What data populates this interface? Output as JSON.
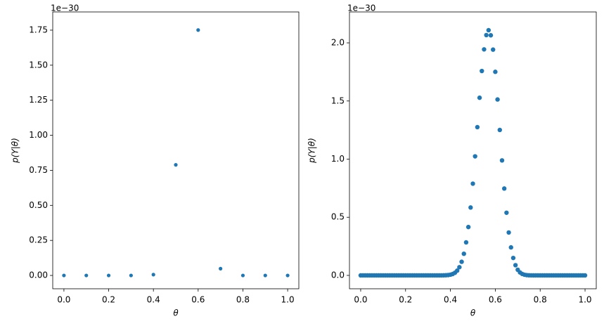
{
  "chart_data": [
    {
      "type": "scatter",
      "xlabel": "θ",
      "ylabel": "p(Y|θ)",
      "offset_text": "1e−30",
      "color": "#1f77b4",
      "x": [
        0.0,
        0.1,
        0.2,
        0.3,
        0.4,
        0.5,
        0.6,
        0.7,
        0.8,
        0.9,
        1.0
      ],
      "values": [
        0,
        0,
        0,
        0,
        0.006,
        0.789,
        1.751,
        0.0486,
        0,
        0,
        0
      ],
      "xlim": [
        -0.05,
        1.05
      ],
      "ylim": [
        -0.095,
        1.88
      ],
      "xticks": [
        {
          "value": 0,
          "label": "0.0"
        },
        {
          "value": 0.2,
          "label": "0.2"
        },
        {
          "value": 0.4,
          "label": "0.4"
        },
        {
          "value": 0.6,
          "label": "0.6"
        },
        {
          "value": 0.8,
          "label": "0.8"
        },
        {
          "value": 1,
          "label": "1.0"
        }
      ],
      "yticks": [
        {
          "value": 0,
          "label": "0.00"
        },
        {
          "value": 0.25,
          "label": "0.25"
        },
        {
          "value": 0.5,
          "label": "0.50"
        },
        {
          "value": 0.75,
          "label": "0.75"
        },
        {
          "value": 1,
          "label": "1.00"
        },
        {
          "value": 1.25,
          "label": "1.25"
        },
        {
          "value": 1.5,
          "label": "1.50"
        },
        {
          "value": 1.75,
          "label": "1.75"
        }
      ]
    },
    {
      "type": "scatter",
      "xlabel": "θ",
      "ylabel": "p(Y|θ)",
      "offset_text": "1e−30",
      "color": "#1f77b4",
      "x": [
        0,
        0.01,
        0.02,
        0.03,
        0.04,
        0.05,
        0.06,
        0.07,
        0.08,
        0.09,
        0.1,
        0.11,
        0.12,
        0.13,
        0.14,
        0.15,
        0.16,
        0.17,
        0.18,
        0.19,
        0.2,
        0.21,
        0.22,
        0.23,
        0.24,
        0.25,
        0.26,
        0.27,
        0.28,
        0.29,
        0.3,
        0.31,
        0.32,
        0.33,
        0.34,
        0.35,
        0.36,
        0.37,
        0.38,
        0.39,
        0.4,
        0.41,
        0.42,
        0.43,
        0.44,
        0.45,
        0.46,
        0.47,
        0.48,
        0.49,
        0.5,
        0.51,
        0.52,
        0.53,
        0.54,
        0.55,
        0.56,
        0.57,
        0.58,
        0.59,
        0.6,
        0.61,
        0.62,
        0.63,
        0.64,
        0.65,
        0.66,
        0.67,
        0.68,
        0.69,
        0.7,
        0.71,
        0.72,
        0.73,
        0.74,
        0.75,
        0.76,
        0.77,
        0.78,
        0.79,
        0.8,
        0.81,
        0.82,
        0.83,
        0.84,
        0.85,
        0.86,
        0.87,
        0.88,
        0.89,
        0.9,
        0.91,
        0.92,
        0.93,
        0.94,
        0.95,
        0.96,
        0.97,
        0.98,
        0.99,
        1
      ],
      "values": [
        0,
        0,
        0,
        0,
        0,
        0,
        0,
        0,
        0,
        0,
        0,
        0,
        0,
        0,
        0,
        0,
        0,
        0,
        0,
        0,
        0,
        0,
        0,
        0,
        0,
        0,
        0,
        0,
        0,
        0,
        0,
        0,
        0,
        0,
        0,
        0.0001,
        0.0002,
        0.0006,
        0.0013,
        0.0029,
        0.006,
        0.0119,
        0.0225,
        0.0408,
        0.0707,
        0.117,
        0.186,
        0.284,
        0.416,
        0.584,
        0.789,
        1.024,
        1.275,
        1.528,
        1.758,
        1.944,
        2.067,
        2.109,
        2.065,
        1.942,
        1.751,
        1.513,
        1.251,
        0.989,
        0.747,
        0.539,
        0.369,
        0.241,
        0.15,
        0.0878,
        0.0486,
        0.0254,
        0.0125,
        0.0057,
        0.0025,
        0.001,
        0.0004,
        0,
        0,
        0,
        0,
        0,
        0,
        0,
        0,
        0,
        0,
        0,
        0,
        0,
        0,
        0,
        0,
        0,
        0,
        0,
        0,
        0,
        0,
        0,
        0
      ],
      "xlim": [
        -0.05,
        1.05
      ],
      "ylim": [
        -0.115,
        2.266
      ],
      "xticks": [
        {
          "value": 0,
          "label": "0.0"
        },
        {
          "value": 0.2,
          "label": "0.2"
        },
        {
          "value": 0.4,
          "label": "0.4"
        },
        {
          "value": 0.6,
          "label": "0.6"
        },
        {
          "value": 0.8,
          "label": "0.8"
        },
        {
          "value": 1,
          "label": "1.0"
        }
      ],
      "yticks": [
        {
          "value": 0,
          "label": "0.0"
        },
        {
          "value": 0.5,
          "label": "0.5"
        },
        {
          "value": 1,
          "label": "1.0"
        },
        {
          "value": 1.5,
          "label": "1.5"
        },
        {
          "value": 2,
          "label": "2.0"
        }
      ]
    }
  ]
}
